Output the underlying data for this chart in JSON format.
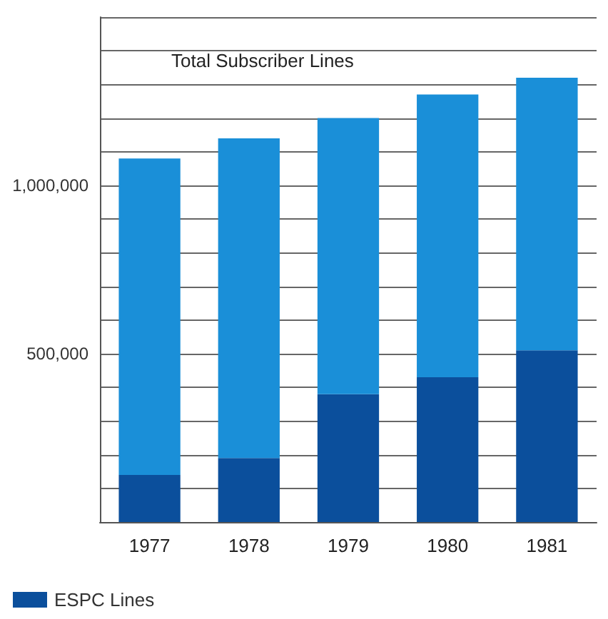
{
  "chart_data": {
    "type": "bar",
    "stacked": true,
    "annotations": [
      "Total Subscriber Lines"
    ],
    "categories": [
      "1977",
      "1978",
      "1979",
      "1980",
      "1981"
    ],
    "series": [
      {
        "name": "ESPC Lines",
        "color": "#0b4f9c",
        "values": [
          140000,
          190000,
          380000,
          430000,
          510000
        ]
      },
      {
        "color": "#1a8fd8",
        "values": [
          940000,
          950000,
          820000,
          840000,
          810000
        ]
      }
    ],
    "ylim": [
      0,
      1500000
    ],
    "yticks": [
      {
        "value": 0,
        "label": null
      },
      {
        "value": 100000,
        "label": null
      },
      {
        "value": 200000,
        "label": null
      },
      {
        "value": 300000,
        "label": null
      },
      {
        "value": 400000,
        "label": null
      },
      {
        "value": 500000,
        "label": "500,000"
      },
      {
        "value": 600000,
        "label": null
      },
      {
        "value": 700000,
        "label": null
      },
      {
        "value": 800000,
        "label": null
      },
      {
        "value": 900000,
        "label": null
      },
      {
        "value": 1000000,
        "label": "1,000,000"
      },
      {
        "value": 1100000,
        "label": null
      },
      {
        "value": 1200000,
        "label": null
      },
      {
        "value": 1300000,
        "label": null
      },
      {
        "value": 1400000,
        "label": null
      },
      {
        "value": 1500000,
        "label": null
      }
    ],
    "grid": "y",
    "legend": "bottom left"
  }
}
